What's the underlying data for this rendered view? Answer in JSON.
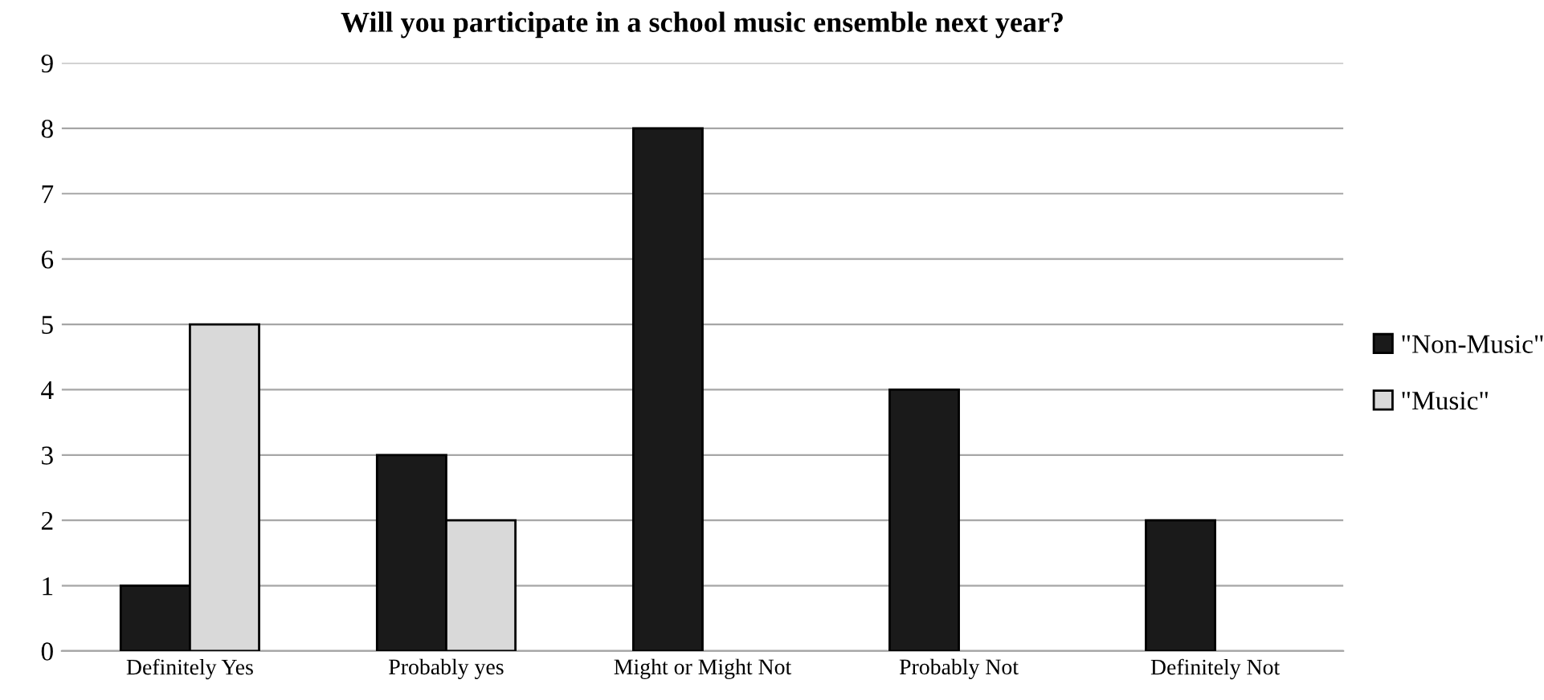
{
  "chart_data": {
    "type": "bar",
    "title": "Will you participate in a school music ensemble next year?",
    "categories": [
      "Definitely Yes",
      "Probably yes",
      "Might or Might Not",
      "Probably Not",
      "Definitely Not"
    ],
    "series": [
      {
        "name": "\"Non-Music\"",
        "color": "#1a1a1a",
        "values": [
          1,
          3,
          8,
          4,
          2
        ]
      },
      {
        "name": "\"Music\"",
        "color": "#d9d9d9",
        "values": [
          5,
          2,
          null,
          null,
          null
        ]
      }
    ],
    "ylim": [
      0,
      9
    ],
    "yticks": [
      0,
      1,
      2,
      3,
      4,
      5,
      6,
      7,
      8,
      9
    ],
    "grid": "y",
    "legend": "right"
  }
}
